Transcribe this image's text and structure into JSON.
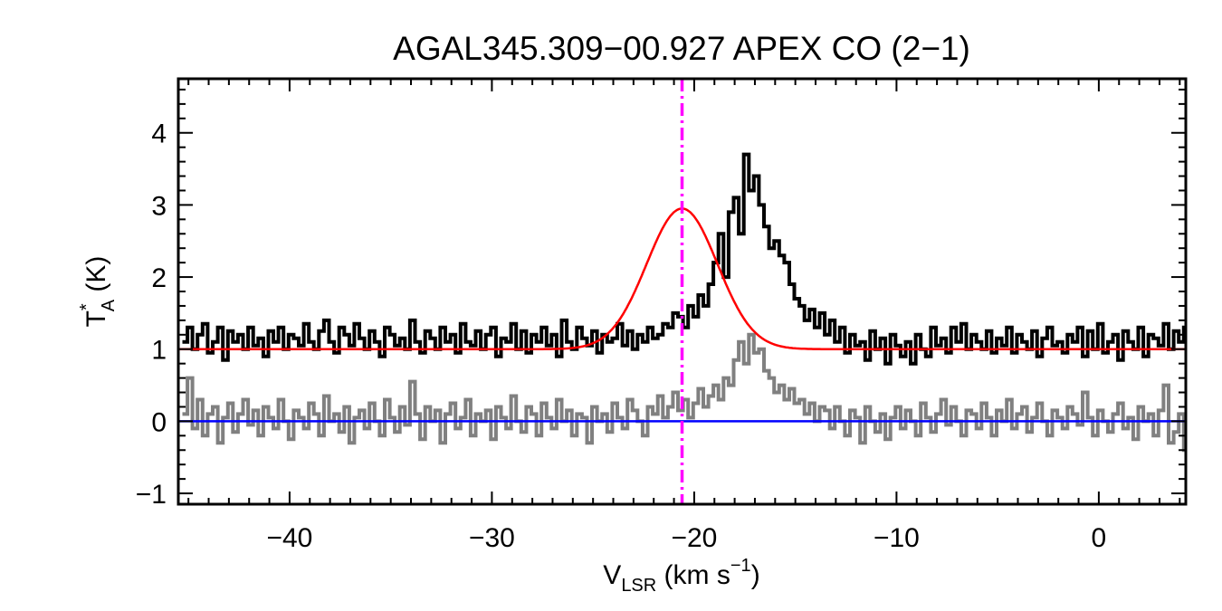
{
  "chart_data": {
    "type": "line",
    "title": "AGAL345.309−00.927  APEX CO (2−1)",
    "xlabel": {
      "main": "V",
      "sub": "LSR",
      "tail": " (km s",
      "sup": "−1",
      "end": ")"
    },
    "ylabel": {
      "main": "T",
      "sup": "*",
      "sub": "A",
      "tail": " (K)"
    },
    "xlim": [
      -45.5,
      4.3
    ],
    "ylim": [
      -1.15,
      4.75
    ],
    "xticks": [
      -40,
      -30,
      -20,
      -10,
      0
    ],
    "xtick_labels": [
      "−40",
      "−30",
      "−20",
      "−10",
      "0"
    ],
    "yticks": [
      -1,
      0,
      1,
      2,
      3,
      4
    ],
    "ytick_labels": [
      "−1",
      "0",
      "1",
      "2",
      "3",
      "4"
    ],
    "reference_velocity": -20.6,
    "baseline_level": 0,
    "gaussian_fit": {
      "amplitude": 1.95,
      "center": -20.6,
      "sigma": 1.75,
      "offset": 1.0
    },
    "colors": {
      "spectrum": "#000000",
      "residual": "#808080",
      "fit": "#ff0000",
      "baseline": "#0000ff",
      "vline": "#ff00ff"
    },
    "series": [
      {
        "name": "spectrum",
        "x_start": -45.3,
        "dx": 0.25,
        "values": [
          1.1,
          1.3,
          1.0,
          1.2,
          1.35,
          0.95,
          1.1,
          1.3,
          0.85,
          1.25,
          1.1,
          1.2,
          1.0,
          1.3,
          1.05,
          1.15,
          0.9,
          1.25,
          1.1,
          1.3,
          1.0,
          1.2,
          1.15,
          1.05,
          1.35,
          1.1,
          1.0,
          1.25,
          1.4,
          1.1,
          0.95,
          1.3,
          1.2,
          1.05,
          1.35,
          1.15,
          1.0,
          1.25,
          1.1,
          0.9,
          1.3,
          1.2,
          1.05,
          1.15,
          1.0,
          1.4,
          1.1,
          0.95,
          1.25,
          1.15,
          1.0,
          1.3,
          1.1,
          1.2,
          0.95,
          1.35,
          1.1,
          1.05,
          1.25,
          1.0,
          1.2,
          1.3,
          0.9,
          1.15,
          1.1,
          1.35,
          1.0,
          1.25,
          0.95,
          1.2,
          1.1,
          1.3,
          1.05,
          1.2,
          0.9,
          1.4,
          1.1,
          1.0,
          1.3,
          1.15,
          1.05,
          1.25,
          0.95,
          1.2,
          1.1,
          1.15,
          1.35,
          1.05,
          1.25,
          1.0,
          1.2,
          1.1,
          1.3,
          1.15,
          1.2,
          1.35,
          1.3,
          1.5,
          1.45,
          1.3,
          1.6,
          1.45,
          1.75,
          1.6,
          1.9,
          2.2,
          2.6,
          2.0,
          2.9,
          3.1,
          2.6,
          3.7,
          3.2,
          3.4,
          3.0,
          2.7,
          2.4,
          2.5,
          2.3,
          2.2,
          1.9,
          1.7,
          1.6,
          1.4,
          1.55,
          1.3,
          1.5,
          1.2,
          1.4,
          1.1,
          1.3,
          0.95,
          1.2,
          1.05,
          1.1,
          0.85,
          1.25,
          1.0,
          1.15,
          0.8,
          1.2,
          1.05,
          0.9,
          1.1,
          0.8,
          1.2,
          1.0,
          0.9,
          1.3,
          1.05,
          1.15,
          0.95,
          1.3,
          1.1,
          1.35,
          1.0,
          1.2,
          1.1,
          1.0,
          1.25,
          0.95,
          1.15,
          1.05,
          1.3,
          0.95,
          1.2,
          1.1,
          1.0,
          1.25,
          0.9,
          1.15,
          1.3,
          1.05,
          1.1,
          0.95,
          1.2,
          1.1,
          1.3,
          0.9,
          1.25,
          1.0,
          1.35,
          0.95,
          1.1,
          1.2,
          0.85,
          1.25,
          1.1,
          1.0,
          1.3,
          0.9,
          1.2,
          1.15,
          1.05,
          1.35,
          1.0,
          1.25,
          1.1,
          1.3,
          0.95
        ]
      },
      {
        "name": "residual",
        "x_start": -45.3,
        "dx": 0.25,
        "values": [
          0.1,
          0.6,
          -0.1,
          0.3,
          -0.2,
          0.1,
          0.2,
          -0.3,
          0.05,
          0.25,
          -0.15,
          0.1,
          0.3,
          -0.05,
          0.15,
          -0.2,
          0.2,
          0.05,
          -0.1,
          0.3,
          0.0,
          -0.25,
          0.15,
          0.05,
          -0.1,
          0.25,
          0.1,
          -0.2,
          0.35,
          0.0,
          0.1,
          -0.15,
          0.2,
          -0.3,
          0.05,
          0.15,
          -0.1,
          0.25,
          0.0,
          -0.2,
          0.3,
          0.05,
          -0.15,
          0.2,
          -0.05,
          0.55,
          0.1,
          -0.25,
          0.2,
          0.0,
          0.15,
          -0.3,
          0.1,
          0.25,
          -0.1,
          0.05,
          0.3,
          -0.2,
          0.1,
          0.0,
          0.15,
          -0.25,
          0.2,
          0.05,
          -0.1,
          0.35,
          0.0,
          -0.15,
          0.2,
          0.1,
          -0.2,
          0.25,
          0.05,
          -0.1,
          0.3,
          0.0,
          0.15,
          -0.2,
          0.1,
          0.05,
          -0.3,
          0.2,
          0.0,
          0.1,
          -0.15,
          0.25,
          0.05,
          -0.1,
          0.3,
          0.15,
          0.0,
          -0.2,
          0.2,
          0.1,
          0.35,
          0.05,
          0.2,
          0.4,
          0.15,
          0.3,
          0.05,
          0.25,
          0.45,
          0.2,
          0.35,
          0.5,
          0.3,
          0.6,
          0.5,
          0.85,
          1.1,
          0.8,
          1.2,
          0.95,
          1.0,
          0.7,
          0.6,
          0.4,
          0.5,
          0.3,
          0.45,
          0.25,
          0.3,
          0.1,
          0.25,
          0.0,
          0.2,
          0.15,
          -0.1,
          0.2,
          0.0,
          -0.2,
          0.15,
          0.05,
          -0.3,
          0.2,
          0.0,
          -0.15,
          0.1,
          -0.25,
          0.05,
          0.2,
          -0.1,
          0.15,
          0.0,
          -0.2,
          0.25,
          0.05,
          -0.15,
          0.1,
          0.3,
          -0.05,
          0.2,
          0.0,
          -0.2,
          0.15,
          0.1,
          -0.1,
          0.25,
          0.05,
          -0.2,
          0.15,
          0.0,
          0.3,
          -0.1,
          0.1,
          0.2,
          -0.15,
          0.05,
          0.25,
          0.0,
          -0.2,
          0.15,
          0.05,
          -0.1,
          0.2,
          0.1,
          -0.05,
          0.4,
          0.05,
          -0.2,
          0.15,
          0.0,
          -0.15,
          0.1,
          0.25,
          -0.1,
          0.05,
          -0.25,
          0.2,
          0.0,
          0.1,
          -0.2,
          0.15,
          0.5,
          -0.3,
          -0.15,
          0.1,
          -0.4,
          0.0
        ]
      }
    ]
  }
}
